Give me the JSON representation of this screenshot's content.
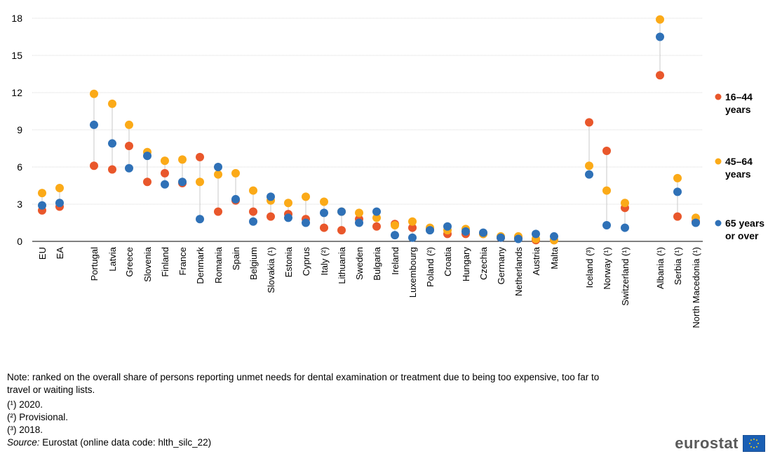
{
  "chart_data": {
    "type": "scatter",
    "ylim": [
      0,
      18
    ],
    "yticks": [
      0,
      3,
      6,
      9,
      12,
      15,
      18
    ],
    "categories": [
      "EU",
      "EA",
      "Portugal",
      "Latvia",
      "Greece",
      "Slovenia",
      "Finland",
      "France",
      "Denmark",
      "Romania",
      "Spain",
      "Belgium",
      "Slovakia (¹)",
      "Estonia",
      "Cyprus",
      "Italy (²)",
      "Lithuania",
      "Sweden",
      "Bulgaria",
      "Ireland",
      "Luxembourg",
      "Poland (²)",
      "Croatia",
      "Hungary",
      "Czechia",
      "Germany",
      "Netherlands",
      "Austria",
      "Malta",
      "Iceland (³)",
      "Norway (¹)",
      "Switzerland (¹)",
      "Albania (¹)",
      "Serbia (¹)",
      "North Macedonia (¹)"
    ],
    "series": [
      {
        "name": "16–44 years",
        "color": "#e9572b",
        "values": [
          2.5,
          2.8,
          6.1,
          5.8,
          7.7,
          4.8,
          5.5,
          4.7,
          6.8,
          2.4,
          3.3,
          2.4,
          2.0,
          2.2,
          1.8,
          1.1,
          0.9,
          1.8,
          1.2,
          1.4,
          1.1,
          1.0,
          0.6,
          0.6,
          0.6,
          0.3,
          0.3,
          0.1,
          0.1,
          9.6,
          7.3,
          2.7,
          13.4,
          2.0,
          1.6
        ]
      },
      {
        "name": "45–64 years",
        "color": "#fbaa18",
        "values": [
          3.9,
          4.3,
          11.9,
          11.1,
          9.4,
          7.2,
          6.5,
          6.6,
          4.8,
          5.4,
          5.5,
          4.1,
          3.3,
          3.1,
          3.6,
          3.2,
          2.4,
          2.3,
          1.9,
          1.3,
          1.6,
          1.1,
          0.9,
          1.0,
          0.6,
          0.4,
          0.4,
          0.2,
          0.1,
          6.1,
          4.1,
          3.1,
          17.9,
          5.1,
          1.9
        ]
      },
      {
        "name": "65 years or over",
        "color": "#2f71b7",
        "values": [
          2.9,
          3.1,
          9.4,
          7.9,
          5.9,
          6.9,
          4.6,
          4.8,
          1.8,
          6.0,
          3.4,
          1.6,
          3.6,
          1.9,
          1.5,
          2.3,
          2.4,
          1.5,
          2.4,
          0.5,
          0.3,
          0.9,
          1.2,
          0.8,
          0.7,
          0.3,
          0.2,
          0.6,
          0.4,
          5.4,
          1.3,
          1.1,
          16.5,
          4.0,
          1.5
        ]
      }
    ],
    "legend_position": "right",
    "legend_labels": [
      {
        "line1": "16–44",
        "line2": "years"
      },
      {
        "line1": "45–64",
        "line2": "years"
      },
      {
        "line1": "65 years",
        "line2": "or over"
      }
    ],
    "grid": true
  },
  "notes": {
    "main": "Note: ranked on the overall share of persons reporting unmet needs for dental examination or treatment due to being too expensive, too far to travel or waiting lists.",
    "fn1": "(¹) 2020.",
    "fn2": "(²) Provisional.",
    "fn3": "(³) 2018.",
    "source_label": "Source:",
    "source_text": " Eurostat (online data code: hlth_silc_22)"
  },
  "logo": {
    "word": "eurostat",
    "flag_icon": "eu-flag-icon"
  }
}
